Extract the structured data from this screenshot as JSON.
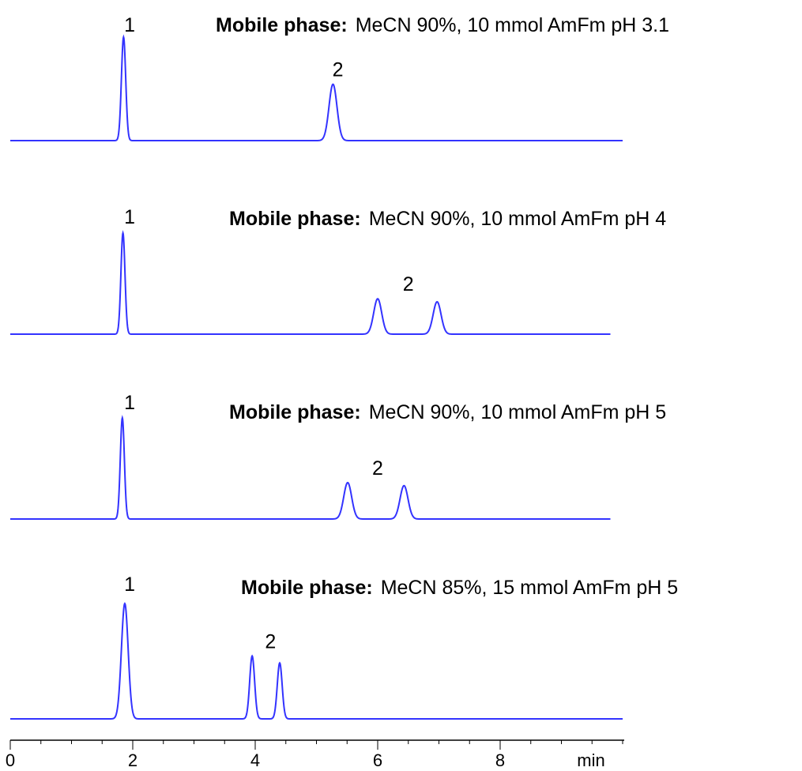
{
  "chart_data": {
    "type": "line",
    "x_axis": {
      "range": [
        0,
        10
      ],
      "ticks": [
        0,
        2,
        4,
        6,
        8
      ],
      "tick_labels": [
        "0",
        "2",
        "4",
        "6",
        "8"
      ],
      "unit_label": "min"
    },
    "series_color": "#3333ff",
    "panels": [
      {
        "label_bold": "Mobile phase:",
        "label_text": "MeCN 90%, 10 mmol AmFm pH 3.1",
        "x_end": 10,
        "peaks": [
          {
            "t": 1.85,
            "height": 1.0,
            "width": 0.035
          },
          {
            "t": 5.27,
            "height": 0.545,
            "width": 0.065
          }
        ],
        "peak_labels": [
          {
            "text": "1",
            "t": 1.95
          },
          {
            "t": 5.35,
            "text": "2"
          }
        ]
      },
      {
        "label_bold": "Mobile phase:",
        "label_text": "MeCN 90%, 10 mmol AmFm pH 4",
        "x_end": 9.8,
        "peaks": [
          {
            "t": 1.84,
            "height": 1.0,
            "width": 0.033
          },
          {
            "t": 6.0,
            "height": 0.35,
            "width": 0.065
          },
          {
            "t": 6.97,
            "height": 0.32,
            "width": 0.065
          }
        ],
        "peak_labels": [
          {
            "text": "1",
            "t": 1.95
          },
          {
            "text": "2",
            "t": 6.5
          }
        ]
      },
      {
        "label_bold": "Mobile phase:",
        "label_text": "MeCN 90%, 10 mmol AmFm pH 5",
        "x_end": 9.8,
        "peaks": [
          {
            "t": 1.83,
            "height": 1.0,
            "width": 0.033
          },
          {
            "t": 5.51,
            "height": 0.36,
            "width": 0.065
          },
          {
            "t": 6.43,
            "height": 0.33,
            "width": 0.065
          }
        ],
        "peak_labels": [
          {
            "text": "1",
            "t": 1.95
          },
          {
            "text": "2",
            "t": 6.0
          }
        ]
      },
      {
        "label_bold": "Mobile phase:",
        "label_text": "MeCN 85%, 15 mmol AmFm pH 5",
        "x_end": 10,
        "peaks": [
          {
            "t": 1.87,
            "height": 1.0,
            "width": 0.055
          },
          {
            "t": 3.95,
            "height": 0.545,
            "width": 0.04
          },
          {
            "t": 4.4,
            "height": 0.485,
            "width": 0.04
          }
        ],
        "peak_labels": [
          {
            "text": "1",
            "t": 1.95
          },
          {
            "text": "2",
            "t": 4.25
          }
        ]
      }
    ]
  }
}
